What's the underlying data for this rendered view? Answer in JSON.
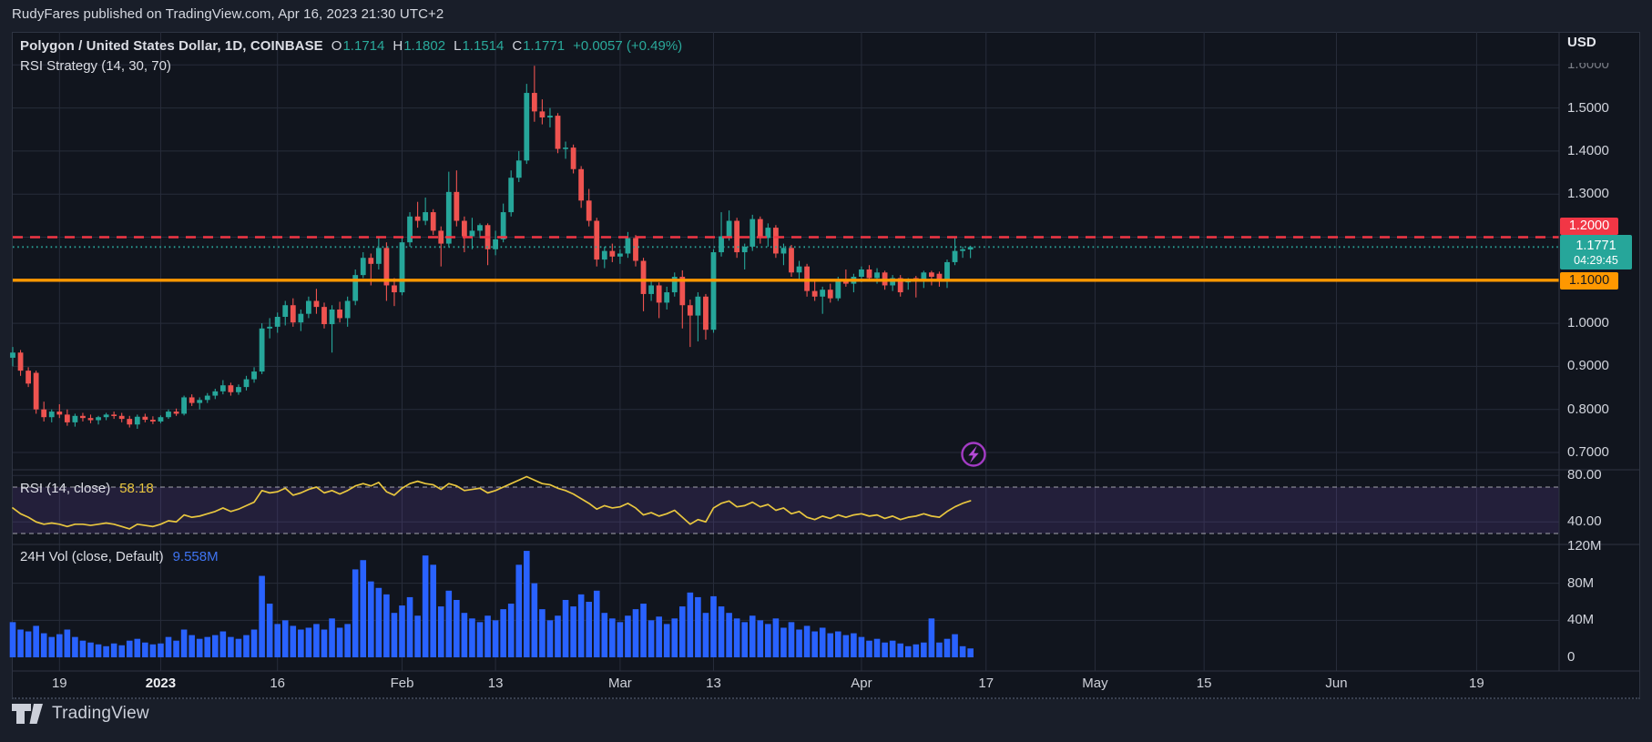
{
  "page": {
    "attribution": "RudyFares published on TradingView.com, Apr 16, 2023 21:30 UTC+2",
    "footer_brand": "TradingView"
  },
  "legend": {
    "symbol_title": "Polygon / United States Dollar, 1D, COINBASE",
    "o_label": "O",
    "o": "1.1714",
    "h_label": "H",
    "h": "1.1802",
    "l_label": "L",
    "l": "1.1514",
    "c_label": "C",
    "c": "1.1771",
    "change": "+0.0057 (+0.49%)",
    "strategy_label": "RSI Strategy (14, 30, 70)"
  },
  "rsi_pane": {
    "label": "RSI (14, close)",
    "value": "58.18"
  },
  "volume_pane": {
    "label": "24H Vol (close, Default)",
    "value": "9.558M"
  },
  "price_axis": {
    "unit": "USD",
    "ticks": [
      {
        "label": "1.6000",
        "price": 1.6,
        "faded": true
      },
      {
        "label": "1.5000",
        "price": 1.5
      },
      {
        "label": "1.4000",
        "price": 1.4
      },
      {
        "label": "1.3000",
        "price": 1.3
      },
      {
        "label": "1.0000",
        "price": 1.0
      },
      {
        "label": "0.9000",
        "price": 0.9
      },
      {
        "label": "0.8000",
        "price": 0.8
      },
      {
        "label": "0.7000",
        "price": 0.7
      }
    ],
    "badges": {
      "resistance": {
        "label": "1.2000"
      },
      "last": {
        "label": "1.1771",
        "countdown": "04:29:45"
      },
      "support": {
        "label": "1.1000"
      }
    }
  },
  "rsi_axis": [
    {
      "label": "80.00",
      "value": 80
    },
    {
      "label": "40.00",
      "value": 40
    }
  ],
  "vol_axis": [
    {
      "label": "120M",
      "value": 120
    },
    {
      "label": "80M",
      "value": 80
    },
    {
      "label": "40M",
      "value": 40
    },
    {
      "label": "0",
      "value": 0
    }
  ],
  "time_axis": [
    {
      "label": "19",
      "day": 6
    },
    {
      "label": "2023",
      "day": 19,
      "bold": true
    },
    {
      "label": "16",
      "day": 34
    },
    {
      "label": "Feb",
      "day": 50
    },
    {
      "label": "13",
      "day": 62
    },
    {
      "label": "Mar",
      "day": 78
    },
    {
      "label": "13",
      "day": 90
    },
    {
      "label": "Apr",
      "day": 109
    },
    {
      "label": "17",
      "day": 125
    },
    {
      "label": "May",
      "day": 139
    },
    {
      "label": "15",
      "day": 153
    },
    {
      "label": "Jun",
      "day": 170
    },
    {
      "label": "19",
      "day": 188
    }
  ],
  "colors": {
    "up": "#26a69a",
    "down": "#ef5350",
    "volume": "#2962ff",
    "rsi_line": "#e8c63f",
    "resistance": "#f23645",
    "support": "#ff9800",
    "last_price": "#2aa398",
    "band_fill": "rgba(130,84,208,0.16)",
    "grid": "#272c3a",
    "separator": "#2e3442",
    "value_teal": "#2aa99b",
    "vol_value_blue": "#3f74f2",
    "icon_purple": "#b54ad6"
  },
  "chart_data": {
    "type": "candlestick",
    "symbol": "Polygon / United States Dollar",
    "exchange": "COINBASE",
    "interval": "1D",
    "title": "Polygon / United States Dollar, 1D, COINBASE",
    "last_candle": {
      "open": 1.1714,
      "high": 1.1802,
      "low": 1.1514,
      "close": 1.1771,
      "change": "+0.0057 (+0.49%)"
    },
    "levels": {
      "resistance": 1.2,
      "support": 1.1,
      "last_price": 1.1771
    },
    "rsi_settings": {
      "length": 14,
      "source": "close",
      "overbought": 70,
      "oversold": 30,
      "last_value": 58.18
    },
    "volume_last_m": 9.558,
    "price_axis_range": [
      0.66,
      1.677
    ],
    "rsi_axis_visible": [
      22,
      87
    ],
    "volume_axis_range_m": [
      0,
      137
    ],
    "x_unit": "1 candle = 1 day, Dec 2022 through mid-Apr 2023; axis extends to late Jun 2023",
    "candles": [
      [
        0.92,
        0.945,
        0.9,
        0.932
      ],
      [
        0.932,
        0.938,
        0.878,
        0.89
      ],
      [
        0.89,
        0.898,
        0.852,
        0.86
      ],
      [
        0.885,
        0.89,
        0.79,
        0.8
      ],
      [
        0.8,
        0.818,
        0.772,
        0.782
      ],
      [
        0.782,
        0.8,
        0.77,
        0.795
      ],
      [
        0.795,
        0.812,
        0.78,
        0.788
      ],
      [
        0.788,
        0.8,
        0.762,
        0.77
      ],
      [
        0.77,
        0.79,
        0.76,
        0.785
      ],
      [
        0.785,
        0.792,
        0.772,
        0.78
      ],
      [
        0.78,
        0.788,
        0.768,
        0.775
      ],
      [
        0.775,
        0.785,
        0.765,
        0.782
      ],
      [
        0.782,
        0.792,
        0.775,
        0.788
      ],
      [
        0.788,
        0.795,
        0.778,
        0.785
      ],
      [
        0.785,
        0.792,
        0.77,
        0.778
      ],
      [
        0.778,
        0.785,
        0.758,
        0.765
      ],
      [
        0.765,
        0.788,
        0.755,
        0.783
      ],
      [
        0.783,
        0.79,
        0.77,
        0.776
      ],
      [
        0.776,
        0.784,
        0.766,
        0.772
      ],
      [
        0.772,
        0.786,
        0.768,
        0.782
      ],
      [
        0.782,
        0.8,
        0.778,
        0.795
      ],
      [
        0.795,
        0.802,
        0.785,
        0.79
      ],
      [
        0.79,
        0.832,
        0.786,
        0.828
      ],
      [
        0.828,
        0.835,
        0.808,
        0.815
      ],
      [
        0.815,
        0.828,
        0.8,
        0.822
      ],
      [
        0.822,
        0.838,
        0.815,
        0.832
      ],
      [
        0.832,
        0.848,
        0.824,
        0.842
      ],
      [
        0.842,
        0.868,
        0.835,
        0.856
      ],
      [
        0.856,
        0.862,
        0.832,
        0.84
      ],
      [
        0.84,
        0.858,
        0.834,
        0.852
      ],
      [
        0.852,
        0.878,
        0.844,
        0.87
      ],
      [
        0.87,
        0.898,
        0.862,
        0.888
      ],
      [
        0.888,
        1.0,
        0.882,
        0.988
      ],
      [
        0.988,
        1.012,
        0.965,
        0.992
      ],
      [
        0.992,
        1.025,
        0.978,
        1.015
      ],
      [
        1.015,
        1.052,
        0.995,
        1.042
      ],
      [
        1.042,
        1.058,
        0.992,
        1.002
      ],
      [
        1.002,
        1.032,
        0.982,
        1.022
      ],
      [
        1.022,
        1.062,
        1.012,
        1.052
      ],
      [
        1.052,
        1.08,
        1.022,
        1.038
      ],
      [
        1.038,
        1.048,
        0.988,
        0.998
      ],
      [
        0.998,
        1.042,
        0.932,
        1.032
      ],
      [
        1.032,
        1.05,
        1.002,
        1.012
      ],
      [
        1.012,
        1.062,
        0.992,
        1.052
      ],
      [
        1.052,
        1.125,
        1.042,
        1.112
      ],
      [
        1.112,
        1.165,
        1.105,
        1.152
      ],
      [
        1.152,
        1.162,
        1.088,
        1.138
      ],
      [
        1.138,
        1.2,
        1.125,
        1.175
      ],
      [
        1.175,
        1.188,
        1.052,
        1.088
      ],
      [
        1.088,
        1.105,
        1.04,
        1.072
      ],
      [
        1.072,
        1.198,
        1.065,
        1.188
      ],
      [
        1.188,
        1.258,
        1.178,
        1.248
      ],
      [
        1.248,
        1.282,
        1.222,
        1.238
      ],
      [
        1.238,
        1.292,
        1.228,
        1.258
      ],
      [
        1.258,
        1.265,
        1.205,
        1.215
      ],
      [
        1.215,
        1.225,
        1.132,
        1.185
      ],
      [
        1.185,
        1.352,
        1.178,
        1.305
      ],
      [
        1.305,
        1.355,
        1.225,
        1.238
      ],
      [
        1.238,
        1.248,
        1.165,
        1.202
      ],
      [
        1.202,
        1.245,
        1.172,
        1.215
      ],
      [
        1.215,
        1.232,
        1.198,
        1.228
      ],
      [
        1.228,
        1.232,
        1.135,
        1.172
      ],
      [
        1.172,
        1.215,
        1.158,
        1.195
      ],
      [
        1.195,
        1.278,
        1.188,
        1.258
      ],
      [
        1.258,
        1.355,
        1.248,
        1.338
      ],
      [
        1.338,
        1.4,
        1.328,
        1.378
      ],
      [
        1.378,
        1.556,
        1.37,
        1.535
      ],
      [
        1.535,
        1.598,
        1.468,
        1.492
      ],
      [
        1.492,
        1.52,
        1.462,
        1.478
      ],
      [
        1.478,
        1.5,
        1.455,
        1.482
      ],
      [
        1.482,
        1.488,
        1.395,
        1.405
      ],
      [
        1.405,
        1.422,
        1.382,
        1.408
      ],
      [
        1.408,
        1.415,
        1.348,
        1.358
      ],
      [
        1.358,
        1.365,
        1.268,
        1.285
      ],
      [
        1.285,
        1.312,
        1.225,
        1.238
      ],
      [
        1.238,
        1.245,
        1.132,
        1.148
      ],
      [
        1.148,
        1.178,
        1.128,
        1.168
      ],
      [
        1.168,
        1.185,
        1.142,
        1.155
      ],
      [
        1.155,
        1.172,
        1.138,
        1.162
      ],
      [
        1.162,
        1.212,
        1.152,
        1.198
      ],
      [
        1.198,
        1.205,
        1.132,
        1.145
      ],
      [
        1.145,
        1.152,
        1.028,
        1.068
      ],
      [
        1.068,
        1.098,
        1.052,
        1.088
      ],
      [
        1.088,
        1.095,
        1.012,
        1.048
      ],
      [
        1.048,
        1.085,
        1.032,
        1.072
      ],
      [
        1.072,
        1.118,
        1.062,
        1.108
      ],
      [
        1.108,
        1.123,
        0.988,
        1.042
      ],
      [
        1.042,
        1.055,
        0.945,
        1.018
      ],
      [
        1.018,
        1.072,
        0.958,
        1.062
      ],
      [
        1.062,
        1.068,
        0.962,
        0.985
      ],
      [
        0.985,
        1.172,
        0.978,
        1.165
      ],
      [
        1.165,
        1.258,
        1.155,
        1.202
      ],
      [
        1.202,
        1.262,
        1.192,
        1.238
      ],
      [
        1.238,
        1.245,
        1.152,
        1.165
      ],
      [
        1.165,
        1.185,
        1.125,
        1.178
      ],
      [
        1.178,
        1.252,
        1.168,
        1.242
      ],
      [
        1.242,
        1.248,
        1.185,
        1.198
      ],
      [
        1.198,
        1.232,
        1.178,
        1.222
      ],
      [
        1.222,
        1.228,
        1.152,
        1.162
      ],
      [
        1.162,
        1.185,
        1.135,
        1.175
      ],
      [
        1.175,
        1.182,
        1.108,
        1.118
      ],
      [
        1.118,
        1.145,
        1.098,
        1.132
      ],
      [
        1.132,
        1.138,
        1.062,
        1.075
      ],
      [
        1.075,
        1.098,
        1.052,
        1.062
      ],
      [
        1.062,
        1.085,
        1.022,
        1.078
      ],
      [
        1.078,
        1.092,
        1.048,
        1.058
      ],
      [
        1.058,
        1.108,
        1.052,
        1.098
      ],
      [
        1.098,
        1.125,
        1.085,
        1.092
      ],
      [
        1.092,
        1.115,
        1.072,
        1.108
      ],
      [
        1.108,
        1.132,
        1.095,
        1.125
      ],
      [
        1.125,
        1.135,
        1.098,
        1.105
      ],
      [
        1.105,
        1.128,
        1.092,
        1.118
      ],
      [
        1.118,
        1.122,
        1.078,
        1.088
      ],
      [
        1.088,
        1.112,
        1.075,
        1.105
      ],
      [
        1.105,
        1.112,
        1.062,
        1.072
      ],
      [
        1.095,
        1.105,
        1.078,
        1.1
      ],
      [
        1.105,
        1.11,
        1.06,
        1.098
      ],
      [
        1.098,
        1.122,
        1.082,
        1.118
      ],
      [
        1.118,
        1.122,
        1.088,
        1.108
      ],
      [
        1.115,
        1.12,
        1.085,
        1.102
      ],
      [
        1.102,
        1.148,
        1.082,
        1.142
      ],
      [
        1.142,
        1.198,
        1.135,
        1.168
      ],
      [
        1.168,
        1.178,
        1.152,
        1.172
      ],
      [
        1.1714,
        1.1802,
        1.1514,
        1.1771
      ]
    ],
    "volumes_m": [
      38,
      30,
      28,
      34,
      26,
      22,
      25,
      30,
      22,
      18,
      16,
      14,
      12,
      15,
      13,
      18,
      20,
      16,
      14,
      15,
      22,
      18,
      30,
      24,
      20,
      22,
      24,
      28,
      22,
      20,
      24,
      30,
      88,
      58,
      36,
      40,
      34,
      30,
      32,
      36,
      30,
      42,
      32,
      36,
      95,
      105,
      82,
      75,
      68,
      48,
      56,
      65,
      45,
      110,
      100,
      55,
      72,
      62,
      48,
      42,
      38,
      45,
      40,
      52,
      58,
      100,
      115,
      80,
      52,
      40,
      45,
      62,
      55,
      68,
      60,
      72,
      48,
      42,
      38,
      45,
      52,
      58,
      40,
      44,
      36,
      42,
      55,
      70,
      65,
      48,
      66,
      55,
      48,
      42,
      38,
      45,
      40,
      36,
      42,
      32,
      38,
      30,
      34,
      28,
      32,
      26,
      28,
      24,
      26,
      22,
      18,
      20,
      16,
      18,
      15,
      12,
      14,
      16,
      42,
      16,
      20,
      25,
      12,
      9.6
    ],
    "rsi": [
      52,
      47,
      44,
      40,
      38,
      39,
      38,
      36,
      38,
      38,
      37,
      38,
      39,
      38,
      36,
      34,
      38,
      37,
      36,
      38,
      41,
      40,
      46,
      44,
      45,
      47,
      49,
      52,
      49,
      51,
      54,
      57,
      67,
      65,
      66,
      69,
      63,
      65,
      68,
      70,
      65,
      67,
      64,
      67,
      71,
      73,
      71,
      74,
      66,
      63,
      69,
      73,
      75,
      73,
      72,
      68,
      73,
      71,
      67,
      68,
      69,
      65,
      67,
      70,
      73,
      76,
      79,
      76,
      73,
      72,
      69,
      67,
      64,
      60,
      56,
      51,
      54,
      52,
      53,
      56,
      52,
      46,
      48,
      45,
      47,
      50,
      44,
      38,
      42,
      40,
      52,
      56,
      58,
      53,
      54,
      57,
      53,
      55,
      50,
      52,
      47,
      49,
      44,
      42,
      45,
      43,
      46,
      44,
      46,
      47,
      45,
      46,
      43,
      45,
      42,
      44,
      45,
      47,
      45,
      44,
      49,
      53,
      56,
      58.18
    ]
  }
}
